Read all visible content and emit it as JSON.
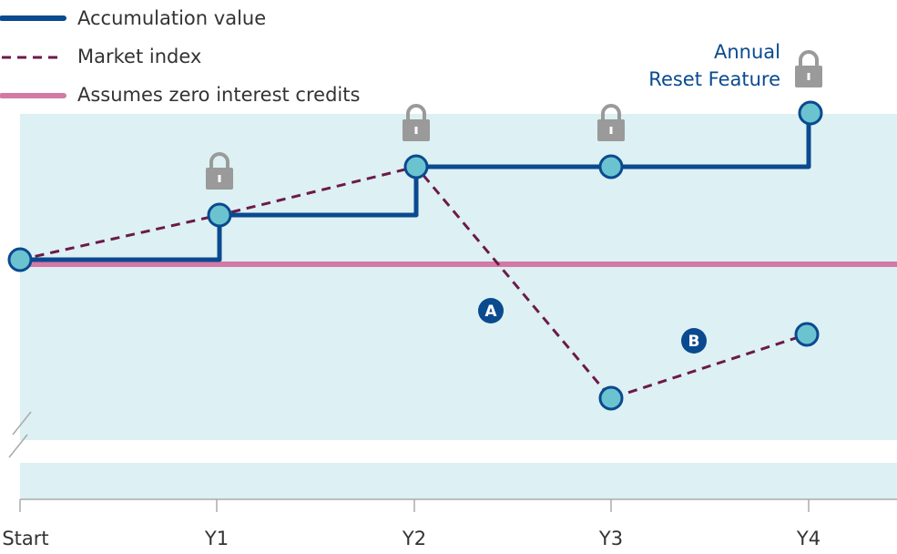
{
  "legend": [
    "Accumulation value",
    "Market index",
    "Assumes zero interest credits"
  ],
  "annotation": {
    "line1": "Annual",
    "line2": "Reset Feature"
  },
  "markers": [
    "A",
    "B"
  ],
  "x_labels": [
    "Start",
    "Y1",
    "Y2",
    "Y3",
    "Y4"
  ]
}
